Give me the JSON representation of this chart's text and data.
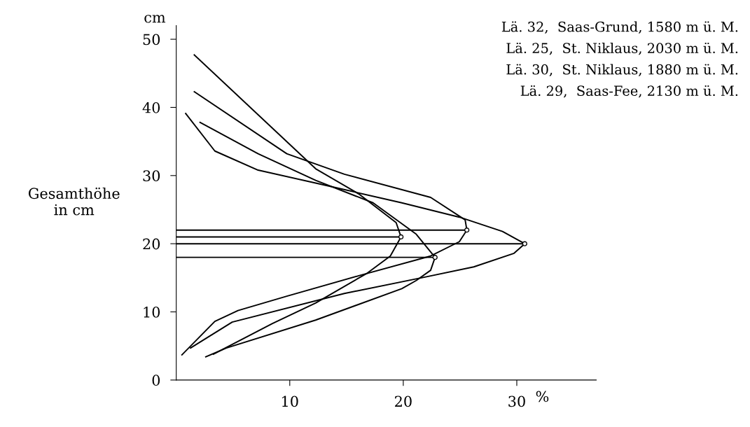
{
  "chart_data": {
    "type": "line",
    "ylabel": "Gesamthöhe\nin cm",
    "annotations": [
      "cm",
      "%",
      "Lä. 32,  Saas-Grund, 1580 m ü. M.",
      "Lä. 25,  St. Niklaus, 2030 m ü. M.",
      "Lä. 30,  St. Niklaus, 1880 m ü. M.",
      "Lä. 29,  Saas-Fee, 2130 m ü. M."
    ],
    "xlim": [
      0,
      37
    ],
    "ylim": [
      0,
      52
    ],
    "xticks": [
      10,
      20,
      30
    ],
    "yticks": [
      0,
      10,
      20,
      30,
      40,
      50
    ],
    "grid": false,
    "line_style": "solid",
    "series": [
      {
        "color": "#000000",
        "x": [
          0.83,
          3.4,
          7.21,
          12.28,
          19.87,
          24.94,
          28.74,
          30.7,
          29.76,
          26.21,
          21.9,
          14.81,
          4.93,
          1.26
        ],
        "values": [
          39.1,
          33.6,
          30.8,
          28.9,
          26.0,
          23.9,
          21.8,
          20,
          18.6,
          16.6,
          15.1,
          12.7,
          8.5,
          4.7
        ]
      },
      {
        "color": "#000000",
        "x": [
          1.59,
          9.74,
          14.81,
          22.41,
          25.45,
          25.6,
          24.94,
          22.41,
          16.08,
          9.74,
          5.44,
          3.4,
          0.5
        ],
        "values": [
          42.3,
          33.2,
          30.2,
          26.8,
          23.5,
          22,
          20.3,
          18.2,
          15.3,
          12.3,
          10.2,
          8.6,
          3.7
        ]
      },
      {
        "color": "#000000",
        "x": [
          1.59,
          12.28,
          16.08,
          19.37,
          19.8,
          18.86,
          16.84,
          12.28,
          8.48,
          4.68,
          3.28
        ],
        "values": [
          47.7,
          31.0,
          27.3,
          23.1,
          21,
          18.2,
          15.7,
          11.3,
          8.3,
          5.0,
          3.8
        ]
      },
      {
        "color": "#000000",
        "x": [
          2.1,
          7.21,
          12.28,
          17.34,
          21.14,
          22.8,
          22.41,
          21.14,
          19.87,
          12.28,
          4.42,
          2.6
        ],
        "values": [
          37.8,
          33.2,
          29.3,
          26.0,
          21.4,
          18,
          16.1,
          14.6,
          13.4,
          8.8,
          4.7,
          3.4
        ]
      },
      {
        "color": "#000000",
        "x": [
          0,
          30.7
        ],
        "values": [
          20,
          20
        ]
      },
      {
        "color": "#000000",
        "x": [
          0,
          25.6
        ],
        "values": [
          22,
          22
        ]
      },
      {
        "color": "#000000",
        "x": [
          0,
          19.8
        ],
        "values": [
          21,
          21
        ]
      },
      {
        "color": "#000000",
        "x": [
          0,
          22.8
        ],
        "values": [
          18,
          18
        ]
      },
      {
        "type": "scatter",
        "color": "#000000",
        "marker": "circle",
        "x": [
          30.7,
          25.6,
          19.8,
          22.8
        ],
        "values": [
          20,
          22,
          21,
          18
        ]
      }
    ]
  }
}
